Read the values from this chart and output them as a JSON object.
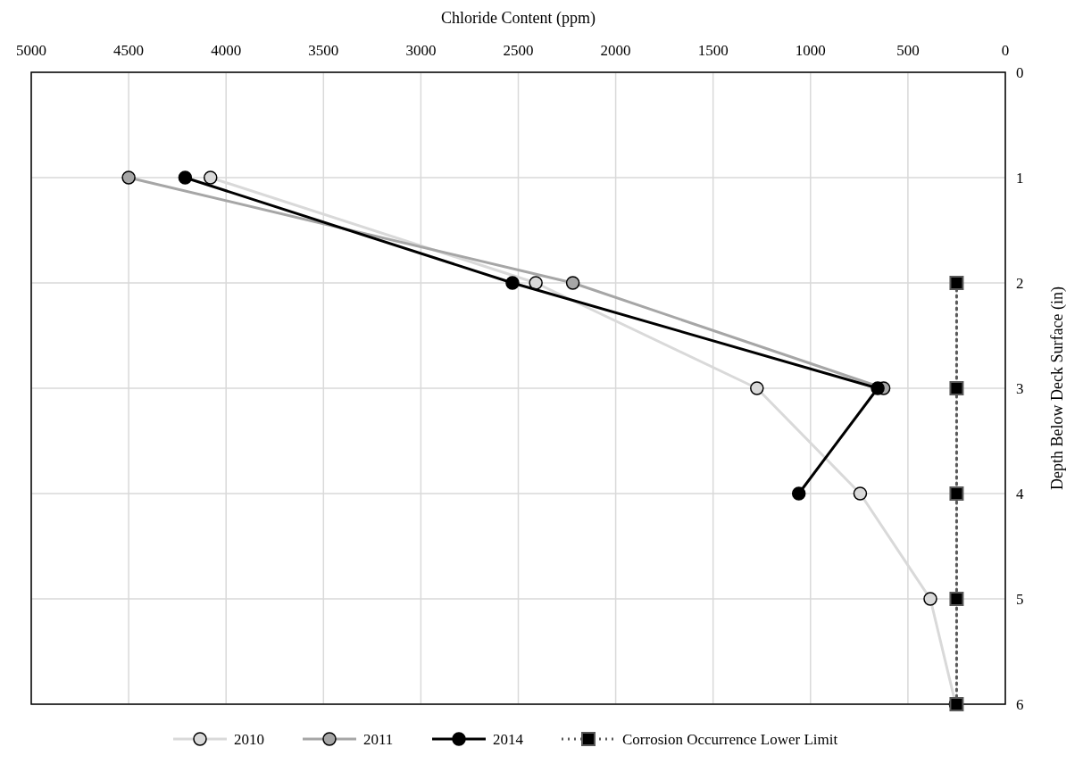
{
  "chart_data": {
    "type": "line",
    "xlabel": "Chloride Content (ppm)",
    "ylabel": "Depth Below Deck Surface (in)",
    "xlim": [
      5000,
      0
    ],
    "xticks": [
      5000,
      4500,
      4000,
      3500,
      3000,
      2500,
      2000,
      1500,
      1000,
      500,
      0
    ],
    "ylim": [
      6,
      0
    ],
    "yticks": [
      0,
      1,
      2,
      3,
      4,
      5,
      6
    ],
    "grid": true,
    "legend": "bottom",
    "marker": "circle",
    "line_style": "solid",
    "series": [
      {
        "name": "2010",
        "color": "#d9d9d9",
        "x": [
          4080,
          2410,
          1275,
          745,
          385,
          255
        ],
        "values": [
          1,
          2,
          3,
          4,
          5,
          6
        ]
      },
      {
        "name": "2011",
        "color": "#a6a6a6",
        "x": [
          4500,
          2220,
          625
        ],
        "values": [
          1,
          2,
          3
        ]
      },
      {
        "name": "2014",
        "color": "#000000",
        "x": [
          4210,
          2530,
          655,
          1060
        ],
        "values": [
          1,
          2,
          3,
          4
        ]
      },
      {
        "name": "Corrosion Occurrence Lower Limit",
        "color": "#595959",
        "x": [
          250,
          250,
          250,
          250,
          250
        ],
        "values": [
          2,
          3,
          4,
          5,
          6
        ],
        "marker": "square",
        "line_style": "dotted"
      }
    ]
  }
}
